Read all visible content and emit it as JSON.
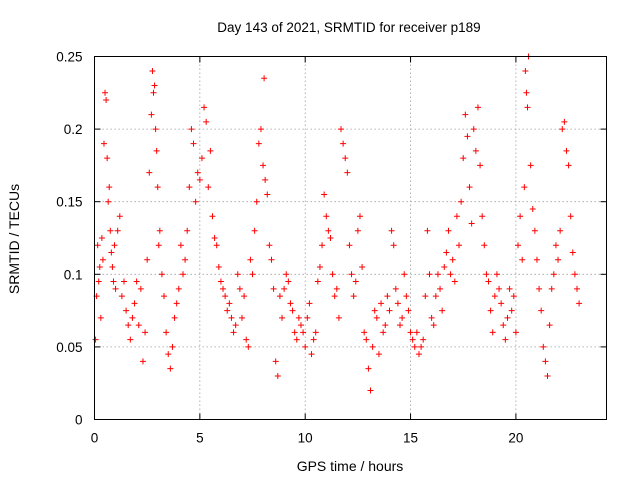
{
  "chart_data": {
    "type": "scatter",
    "title": "Day 143 of 2021, SRMTID for receiver p189",
    "xlabel": "GPS time / hours",
    "ylabel": "SRMTID / TECUs",
    "xlim": [
      0,
      24.3
    ],
    "ylim": [
      0,
      0.25
    ],
    "x_ticks": [
      0,
      5,
      10,
      15,
      20
    ],
    "y_ticks": [
      0,
      0.05,
      0.1,
      0.15,
      0.2,
      0.25
    ],
    "x_tick_labels": [
      "0",
      "5",
      "10",
      "15",
      "20"
    ],
    "y_tick_labels": [
      "0",
      "0.05",
      "0.1",
      "0.15",
      "0.2",
      "0.25"
    ],
    "grid": true,
    "marker": "plus",
    "color": "#ff0000",
    "series": [
      {
        "name": "SRMTID",
        "points": [
          [
            0.05,
            0.055
          ],
          [
            0.1,
            0.085
          ],
          [
            0.15,
            0.12
          ],
          [
            0.2,
            0.095
          ],
          [
            0.25,
            0.105
          ],
          [
            0.3,
            0.07
          ],
          [
            0.35,
            0.125
          ],
          [
            0.4,
            0.11
          ],
          [
            0.45,
            0.19
          ],
          [
            0.5,
            0.225
          ],
          [
            0.55,
            0.22
          ],
          [
            0.6,
            0.18
          ],
          [
            0.65,
            0.15
          ],
          [
            0.7,
            0.16
          ],
          [
            0.75,
            0.13
          ],
          [
            0.8,
            0.115
          ],
          [
            0.85,
            0.105
          ],
          [
            0.9,
            0.095
          ],
          [
            0.95,
            0.12
          ],
          [
            1.0,
            0.09
          ],
          [
            1.1,
            0.13
          ],
          [
            1.2,
            0.14
          ],
          [
            1.3,
            0.085
          ],
          [
            1.4,
            0.095
          ],
          [
            1.5,
            0.075
          ],
          [
            1.6,
            0.065
          ],
          [
            1.7,
            0.055
          ],
          [
            1.8,
            0.07
          ],
          [
            1.9,
            0.08
          ],
          [
            2.0,
            0.095
          ],
          [
            2.1,
            0.065
          ],
          [
            2.2,
            0.09
          ],
          [
            2.3,
            0.04
          ],
          [
            2.4,
            0.06
          ],
          [
            2.5,
            0.11
          ],
          [
            2.6,
            0.17
          ],
          [
            2.7,
            0.21
          ],
          [
            2.75,
            0.24
          ],
          [
            2.8,
            0.225
          ],
          [
            2.85,
            0.23
          ],
          [
            2.9,
            0.2
          ],
          [
            2.95,
            0.185
          ],
          [
            3.0,
            0.16
          ],
          [
            3.05,
            0.12
          ],
          [
            3.1,
            0.13
          ],
          [
            3.2,
            0.1
          ],
          [
            3.3,
            0.085
          ],
          [
            3.4,
            0.06
          ],
          [
            3.5,
            0.045
          ],
          [
            3.6,
            0.035
          ],
          [
            3.7,
            0.05
          ],
          [
            3.8,
            0.07
          ],
          [
            3.9,
            0.08
          ],
          [
            4.0,
            0.09
          ],
          [
            4.1,
            0.12
          ],
          [
            4.2,
            0.1
          ],
          [
            4.3,
            0.11
          ],
          [
            4.4,
            0.13
          ],
          [
            4.5,
            0.16
          ],
          [
            4.6,
            0.2
          ],
          [
            4.7,
            0.19
          ],
          [
            4.8,
            0.15
          ],
          [
            4.9,
            0.17
          ],
          [
            5.0,
            0.165
          ],
          [
            5.1,
            0.18
          ],
          [
            5.2,
            0.215
          ],
          [
            5.3,
            0.205
          ],
          [
            5.4,
            0.16
          ],
          [
            5.5,
            0.185
          ],
          [
            5.6,
            0.14
          ],
          [
            5.7,
            0.125
          ],
          [
            5.8,
            0.12
          ],
          [
            5.9,
            0.105
          ],
          [
            6.0,
            0.095
          ],
          [
            6.1,
            0.09
          ],
          [
            6.2,
            0.085
          ],
          [
            6.3,
            0.075
          ],
          [
            6.4,
            0.08
          ],
          [
            6.5,
            0.07
          ],
          [
            6.6,
            0.06
          ],
          [
            6.7,
            0.065
          ],
          [
            6.8,
            0.1
          ],
          [
            6.9,
            0.09
          ],
          [
            7.0,
            0.07
          ],
          [
            7.1,
            0.085
          ],
          [
            7.2,
            0.055
          ],
          [
            7.3,
            0.05
          ],
          [
            7.4,
            0.11
          ],
          [
            7.5,
            0.1
          ],
          [
            7.6,
            0.13
          ],
          [
            7.7,
            0.15
          ],
          [
            7.8,
            0.19
          ],
          [
            7.9,
            0.2
          ],
          [
            8.0,
            0.175
          ],
          [
            8.05,
            0.235
          ],
          [
            8.1,
            0.165
          ],
          [
            8.2,
            0.155
          ],
          [
            8.3,
            0.12
          ],
          [
            8.4,
            0.11
          ],
          [
            8.5,
            0.09
          ],
          [
            8.6,
            0.04
          ],
          [
            8.7,
            0.03
          ],
          [
            8.8,
            0.085
          ],
          [
            8.9,
            0.07
          ],
          [
            9.0,
            0.09
          ],
          [
            9.1,
            0.1
          ],
          [
            9.2,
            0.095
          ],
          [
            9.3,
            0.08
          ],
          [
            9.4,
            0.075
          ],
          [
            9.5,
            0.06
          ],
          [
            9.6,
            0.055
          ],
          [
            9.7,
            0.07
          ],
          [
            9.8,
            0.065
          ],
          [
            9.9,
            0.06
          ],
          [
            10.0,
            0.05
          ],
          [
            10.1,
            0.07
          ],
          [
            10.2,
            0.08
          ],
          [
            10.3,
            0.045
          ],
          [
            10.4,
            0.055
          ],
          [
            10.5,
            0.06
          ],
          [
            10.6,
            0.095
          ],
          [
            10.7,
            0.105
          ],
          [
            10.8,
            0.12
          ],
          [
            10.9,
            0.155
          ],
          [
            11.0,
            0.14
          ],
          [
            11.1,
            0.13
          ],
          [
            11.2,
            0.125
          ],
          [
            11.3,
            0.1
          ],
          [
            11.4,
            0.085
          ],
          [
            11.5,
            0.09
          ],
          [
            11.6,
            0.07
          ],
          [
            11.7,
            0.2
          ],
          [
            11.8,
            0.19
          ],
          [
            11.9,
            0.18
          ],
          [
            12.0,
            0.17
          ],
          [
            12.1,
            0.12
          ],
          [
            12.2,
            0.1
          ],
          [
            12.3,
            0.085
          ],
          [
            12.4,
            0.095
          ],
          [
            12.5,
            0.13
          ],
          [
            12.6,
            0.14
          ],
          [
            12.7,
            0.105
          ],
          [
            12.8,
            0.06
          ],
          [
            12.9,
            0.055
          ],
          [
            13.0,
            0.035
          ],
          [
            13.1,
            0.02
          ],
          [
            13.2,
            0.05
          ],
          [
            13.3,
            0.075
          ],
          [
            13.4,
            0.07
          ],
          [
            13.5,
            0.045
          ],
          [
            13.6,
            0.08
          ],
          [
            13.7,
            0.06
          ],
          [
            13.8,
            0.065
          ],
          [
            13.9,
            0.085
          ],
          [
            14.0,
            0.075
          ],
          [
            14.1,
            0.13
          ],
          [
            14.2,
            0.12
          ],
          [
            14.3,
            0.09
          ],
          [
            14.4,
            0.08
          ],
          [
            14.5,
            0.065
          ],
          [
            14.6,
            0.07
          ],
          [
            14.7,
            0.1
          ],
          [
            14.8,
            0.085
          ],
          [
            14.9,
            0.075
          ],
          [
            15.0,
            0.06
          ],
          [
            15.1,
            0.055
          ],
          [
            15.2,
            0.05
          ],
          [
            15.3,
            0.06
          ],
          [
            15.4,
            0.045
          ],
          [
            15.5,
            0.05
          ],
          [
            15.6,
            0.055
          ],
          [
            15.7,
            0.085
          ],
          [
            15.8,
            0.13
          ],
          [
            15.9,
            0.1
          ],
          [
            16.0,
            0.07
          ],
          [
            16.1,
            0.065
          ],
          [
            16.2,
            0.085
          ],
          [
            16.3,
            0.1
          ],
          [
            16.4,
            0.09
          ],
          [
            16.5,
            0.075
          ],
          [
            16.6,
            0.105
          ],
          [
            16.7,
            0.115
          ],
          [
            16.8,
            0.13
          ],
          [
            16.9,
            0.1
          ],
          [
            17.0,
            0.11
          ],
          [
            17.1,
            0.095
          ],
          [
            17.2,
            0.14
          ],
          [
            17.3,
            0.12
          ],
          [
            17.4,
            0.15
          ],
          [
            17.5,
            0.18
          ],
          [
            17.6,
            0.21
          ],
          [
            17.7,
            0.195
          ],
          [
            17.8,
            0.16
          ],
          [
            17.9,
            0.135
          ],
          [
            18.0,
            0.2
          ],
          [
            18.1,
            0.185
          ],
          [
            18.2,
            0.215
          ],
          [
            18.3,
            0.175
          ],
          [
            18.4,
            0.14
          ],
          [
            18.5,
            0.12
          ],
          [
            18.6,
            0.1
          ],
          [
            18.7,
            0.095
          ],
          [
            18.8,
            0.075
          ],
          [
            18.9,
            0.06
          ],
          [
            19.0,
            0.085
          ],
          [
            19.1,
            0.1
          ],
          [
            19.2,
            0.09
          ],
          [
            19.3,
            0.08
          ],
          [
            19.4,
            0.065
          ],
          [
            19.5,
            0.055
          ],
          [
            19.6,
            0.07
          ],
          [
            19.7,
            0.09
          ],
          [
            19.8,
            0.075
          ],
          [
            19.9,
            0.085
          ],
          [
            20.0,
            0.06
          ],
          [
            20.1,
            0.12
          ],
          [
            20.2,
            0.14
          ],
          [
            20.3,
            0.11
          ],
          [
            20.4,
            0.16
          ],
          [
            20.45,
            0.24
          ],
          [
            20.5,
            0.225
          ],
          [
            20.55,
            0.215
          ],
          [
            20.6,
            0.25
          ],
          [
            20.7,
            0.175
          ],
          [
            20.8,
            0.145
          ],
          [
            20.9,
            0.13
          ],
          [
            21.0,
            0.11
          ],
          [
            21.1,
            0.09
          ],
          [
            21.2,
            0.075
          ],
          [
            21.3,
            0.05
          ],
          [
            21.4,
            0.04
          ],
          [
            21.5,
            0.03
          ],
          [
            21.6,
            0.065
          ],
          [
            21.7,
            0.09
          ],
          [
            21.8,
            0.1
          ],
          [
            21.9,
            0.12
          ],
          [
            22.0,
            0.11
          ],
          [
            22.1,
            0.13
          ],
          [
            22.2,
            0.2
          ],
          [
            22.3,
            0.205
          ],
          [
            22.4,
            0.185
          ],
          [
            22.5,
            0.175
          ],
          [
            22.6,
            0.14
          ],
          [
            22.7,
            0.115
          ],
          [
            22.8,
            0.1
          ],
          [
            22.9,
            0.09
          ],
          [
            23.0,
            0.08
          ]
        ]
      }
    ]
  }
}
